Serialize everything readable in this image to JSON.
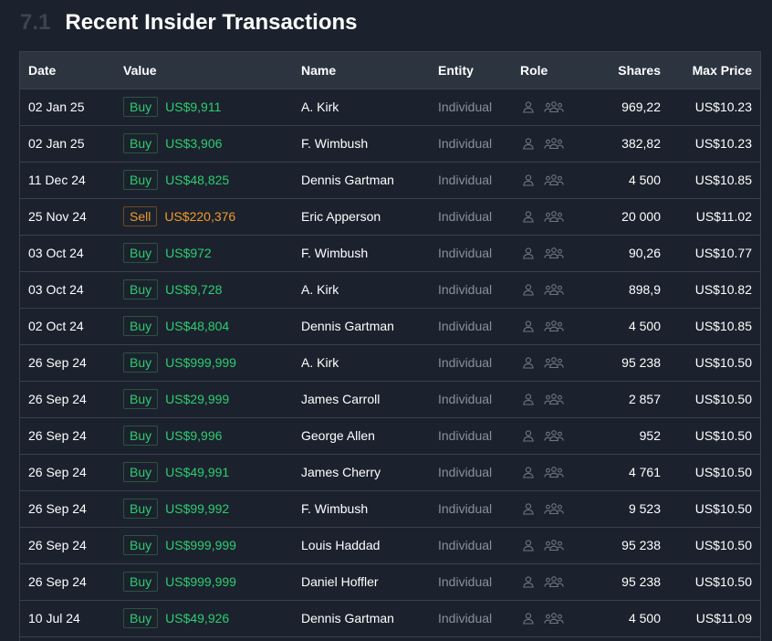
{
  "section": {
    "number": "7.1",
    "title": "Recent Insider Transactions"
  },
  "columns": {
    "date": "Date",
    "value": "Value",
    "name": "Name",
    "entity": "Entity",
    "role": "Role",
    "shares": "Shares",
    "max_price": "Max Price"
  },
  "icons": {
    "individual": "person-icon",
    "group": "group-icon"
  },
  "colors": {
    "buy": "#2ecc71",
    "sell": "#f29a2b",
    "entity": "#8a909a",
    "icon": "#6f7682"
  },
  "rows": [
    {
      "date": "02 Jan 25",
      "type": "Buy",
      "amount": "US$9,911",
      "name": "A. Kirk",
      "entity": "Individual",
      "shares": "969,22",
      "price": "US$10.23"
    },
    {
      "date": "02 Jan 25",
      "type": "Buy",
      "amount": "US$3,906",
      "name": "F. Wimbush",
      "entity": "Individual",
      "shares": "382,82",
      "price": "US$10.23"
    },
    {
      "date": "11 Dec 24",
      "type": "Buy",
      "amount": "US$48,825",
      "name": "Dennis Gartman",
      "entity": "Individual",
      "shares": "4 500",
      "price": "US$10.85"
    },
    {
      "date": "25 Nov 24",
      "type": "Sell",
      "amount": "US$220,376",
      "name": "Eric Apperson",
      "entity": "Individual",
      "shares": "20 000",
      "price": "US$11.02"
    },
    {
      "date": "03 Oct 24",
      "type": "Buy",
      "amount": "US$972",
      "name": "F. Wimbush",
      "entity": "Individual",
      "shares": "90,26",
      "price": "US$10.77"
    },
    {
      "date": "03 Oct 24",
      "type": "Buy",
      "amount": "US$9,728",
      "name": "A. Kirk",
      "entity": "Individual",
      "shares": "898,9",
      "price": "US$10.82"
    },
    {
      "date": "02 Oct 24",
      "type": "Buy",
      "amount": "US$48,804",
      "name": "Dennis Gartman",
      "entity": "Individual",
      "shares": "4 500",
      "price": "US$10.85"
    },
    {
      "date": "26 Sep 24",
      "type": "Buy",
      "amount": "US$999,999",
      "name": "A. Kirk",
      "entity": "Individual",
      "shares": "95 238",
      "price": "US$10.50"
    },
    {
      "date": "26 Sep 24",
      "type": "Buy",
      "amount": "US$29,999",
      "name": "James Carroll",
      "entity": "Individual",
      "shares": "2 857",
      "price": "US$10.50"
    },
    {
      "date": "26 Sep 24",
      "type": "Buy",
      "amount": "US$9,996",
      "name": "George Allen",
      "entity": "Individual",
      "shares": "952",
      "price": "US$10.50"
    },
    {
      "date": "26 Sep 24",
      "type": "Buy",
      "amount": "US$49,991",
      "name": "James Cherry",
      "entity": "Individual",
      "shares": "4 761",
      "price": "US$10.50"
    },
    {
      "date": "26 Sep 24",
      "type": "Buy",
      "amount": "US$99,992",
      "name": "F. Wimbush",
      "entity": "Individual",
      "shares": "9 523",
      "price": "US$10.50"
    },
    {
      "date": "26 Sep 24",
      "type": "Buy",
      "amount": "US$999,999",
      "name": "Louis Haddad",
      "entity": "Individual",
      "shares": "95 238",
      "price": "US$10.50"
    },
    {
      "date": "26 Sep 24",
      "type": "Buy",
      "amount": "US$999,999",
      "name": "Daniel Hoffler",
      "entity": "Individual",
      "shares": "95 238",
      "price": "US$10.50"
    },
    {
      "date": "10 Jul 24",
      "type": "Buy",
      "amount": "US$49,926",
      "name": "Dennis Gartman",
      "entity": "Individual",
      "shares": "4 500",
      "price": "US$11.09"
    }
  ]
}
